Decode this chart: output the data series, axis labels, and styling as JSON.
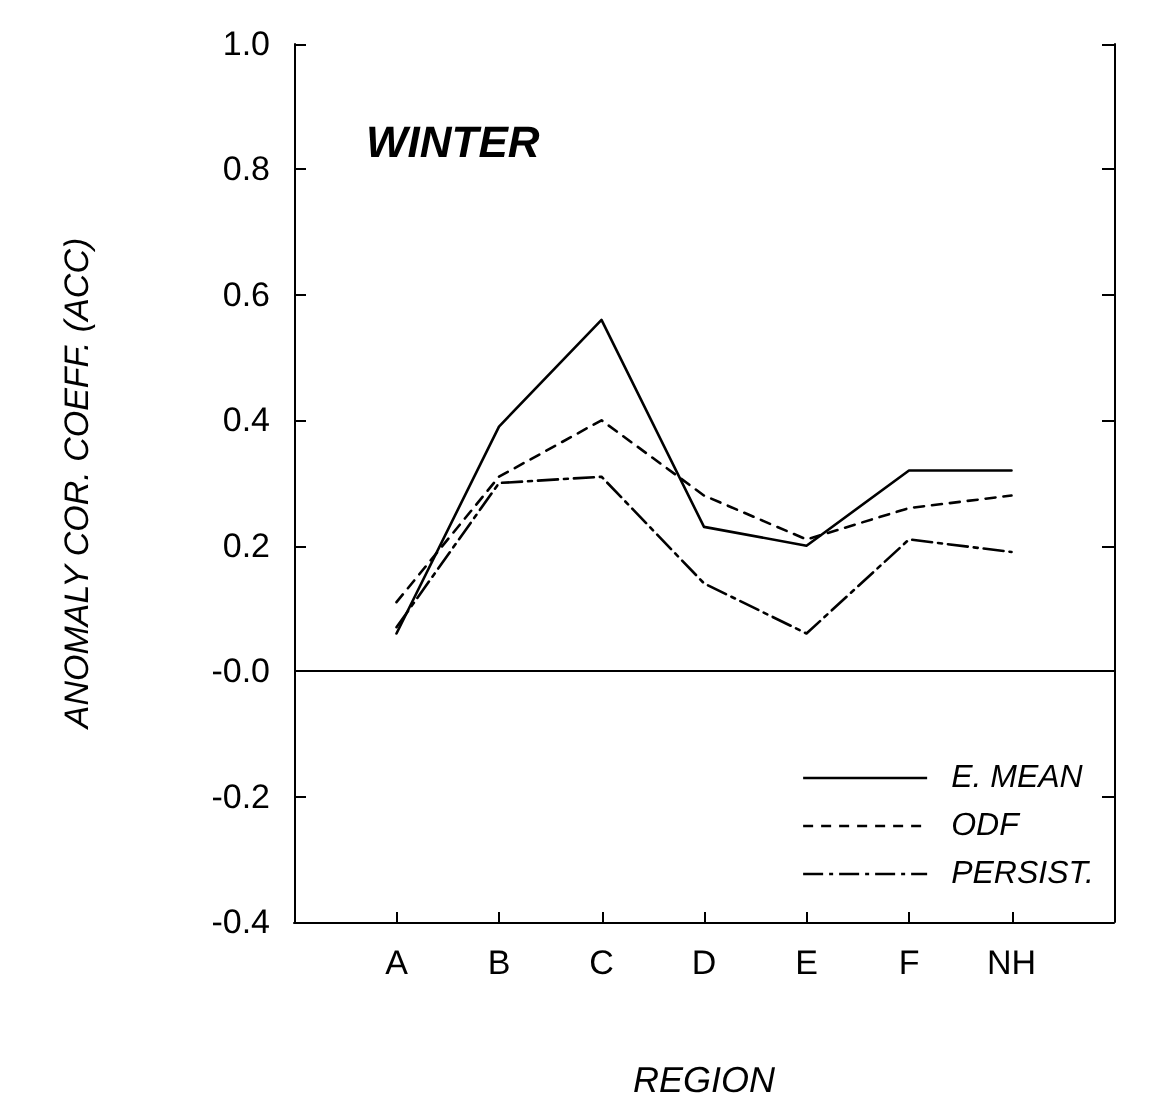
{
  "chart_data": {
    "type": "line",
    "title": "WINTER",
    "xlabel": "REGION",
    "ylabel": "ANOMALY COR. COEFF. (ACC)",
    "categories": [
      "A",
      "B",
      "C",
      "D",
      "E",
      "F",
      "NH"
    ],
    "series": [
      {
        "name": "E. MEAN",
        "color": "#000000",
        "line_style": "solid",
        "values": [
          0.06,
          0.39,
          0.56,
          0.23,
          0.2,
          0.32,
          0.32
        ]
      },
      {
        "name": "ODF",
        "color": "#000000",
        "line_style": "dashed",
        "values": [
          0.11,
          0.31,
          0.4,
          0.28,
          0.21,
          0.26,
          0.28
        ]
      },
      {
        "name": "PERSIST.",
        "color": "#000000",
        "line_style": "dashdot",
        "values": [
          0.07,
          0.3,
          0.31,
          0.14,
          0.06,
          0.21,
          0.19
        ]
      }
    ],
    "ylim": [
      -0.4,
      1.0
    ],
    "yticks": [
      {
        "value": -0.4,
        "label": "-0.4"
      },
      {
        "value": -0.2,
        "label": "-0.2"
      },
      {
        "value": 0,
        "label": "-0.0"
      },
      {
        "value": 0.2,
        "label": "0.2"
      },
      {
        "value": 0.4,
        "label": "0.4"
      },
      {
        "value": 0.6,
        "label": "0.6"
      },
      {
        "value": 0.8,
        "label": "0.8"
      },
      {
        "value": 1.0,
        "label": "1.0"
      }
    ],
    "ref_lines": [
      {
        "axis": "y",
        "value": 0,
        "color": "#000000",
        "line_style": "solid"
      }
    ],
    "grid": false,
    "legend": "bottom right"
  }
}
